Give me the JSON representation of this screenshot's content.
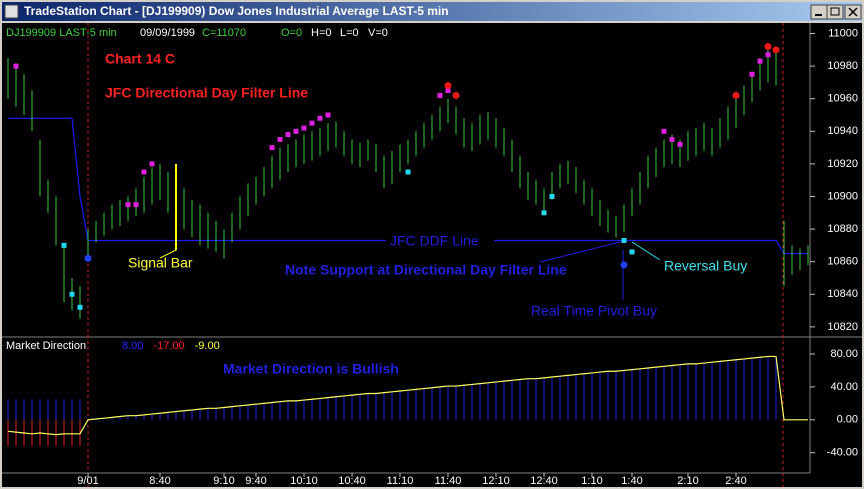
{
  "window": {
    "title": "TradeStation Chart - [DJ199909) Dow Jones Industrial Average LAST-5 min",
    "status": [
      "DJ199909 LAST-5 min",
      "09/09/1999",
      "C=11070",
      "O=0",
      "H=0",
      "L=0",
      "V=0"
    ]
  },
  "chart_data": [
    {
      "type": "range",
      "annotations": [
        "Chart 14 C",
        "JFC Directional Day Filter Line",
        "Signal Bar",
        "JFC DDF Line",
        "Note Support at Directional Day Filter Line",
        "Reversal Buy",
        "Real Time Pivot Buy"
      ],
      "categories": [
        null,
        null,
        null,
        null,
        null,
        null,
        null,
        null,
        null,
        null,
        "9/01",
        null,
        null,
        null,
        null,
        null,
        null,
        null,
        null,
        "8:40",
        null,
        null,
        null,
        null,
        null,
        null,
        null,
        "9:10",
        null,
        null,
        null,
        "9:40",
        null,
        null,
        null,
        null,
        null,
        "10:10",
        null,
        null,
        null,
        null,
        null,
        "10:40",
        null,
        null,
        null,
        null,
        null,
        "11:10",
        null,
        null,
        null,
        null,
        null,
        "11:40",
        null,
        null,
        null,
        null,
        null,
        "12:10",
        null,
        null,
        null,
        null,
        null,
        "12:40",
        null,
        null,
        null,
        null,
        null,
        "1:10",
        null,
        null,
        null,
        null,
        "1:40",
        null,
        null,
        null,
        null,
        null,
        null,
        "2:10",
        null,
        null,
        null,
        null,
        null,
        "2:40",
        null,
        null,
        null,
        null,
        null,
        null,
        null,
        null,
        null
      ],
      "color": "#3cc83c",
      "high": [
        10985,
        10980,
        10975,
        10965,
        10935,
        10910,
        10900,
        10870,
        10850,
        10845,
        10880,
        10885,
        10890,
        10895,
        10898,
        10900,
        10905,
        10912,
        10918,
        10920,
        10915,
        10920,
        10905,
        10898,
        10895,
        10890,
        10885,
        10880,
        10890,
        10900,
        10908,
        10912,
        10918,
        10925,
        10930,
        10932,
        10935,
        10938,
        10940,
        10942,
        10945,
        10946,
        10940,
        10935,
        10933,
        10935,
        10932,
        10925,
        10928,
        10932,
        10935,
        10940,
        10945,
        10950,
        10955,
        10960,
        10955,
        10948,
        10945,
        10950,
        10952,
        10948,
        10942,
        10935,
        10925,
        10915,
        10910,
        10905,
        10915,
        10920,
        10922,
        10918,
        10910,
        10905,
        10898,
        10892,
        10888,
        10895,
        10905,
        10915,
        10925,
        10930,
        10935,
        10938,
        10935,
        10940,
        10942,
        10945,
        10942,
        10948,
        10955,
        10960,
        10968,
        10975,
        10985,
        10990,
        10988,
        10885,
        10870,
        10868,
        10870
      ],
      "low": [
        10960,
        10955,
        10950,
        10940,
        10900,
        10890,
        10870,
        10835,
        10830,
        10825,
        10860,
        10872,
        10876,
        10880,
        10882,
        10885,
        10888,
        10890,
        10895,
        10898,
        10890,
        10867,
        10880,
        10875,
        10870,
        10868,
        10866,
        10862,
        10872,
        10880,
        10888,
        10895,
        10900,
        10905,
        10910,
        10915,
        10918,
        10920,
        10922,
        10925,
        10928,
        10930,
        10925,
        10920,
        10918,
        10922,
        10915,
        10905,
        10908,
        10915,
        10920,
        10925,
        10930,
        10935,
        10940,
        10945,
        10938,
        10930,
        10928,
        10932,
        10935,
        10930,
        10925,
        10915,
        10905,
        10898,
        10895,
        10890,
        10898,
        10905,
        10908,
        10902,
        10895,
        10888,
        10882,
        10878,
        10875,
        10878,
        10888,
        10895,
        10905,
        10912,
        10918,
        10920,
        10918,
        10922,
        10925,
        10928,
        10925,
        10930,
        10935,
        10942,
        10950,
        10958,
        10965,
        10970,
        10968,
        10845,
        10852,
        10855,
        10858
      ],
      "highlight_index": 21,
      "highlight_color": "#ffff00",
      "line": {
        "color": "#1c1cf0",
        "values": [
          10948,
          10948,
          10948,
          10948,
          10948,
          10948,
          10948,
          10948,
          10948,
          10900,
          10873,
          10873,
          10873,
          10873,
          10873,
          10873,
          10873,
          10873,
          10873,
          10873,
          10873,
          10873,
          10873,
          10873,
          10873,
          10873,
          10873,
          10873,
          10873,
          10873,
          10873,
          10873,
          10873,
          10873,
          10873,
          10873,
          10873,
          10873,
          10873,
          10873,
          10873,
          10873,
          10873,
          10873,
          10873,
          10873,
          10873,
          10873,
          10873,
          10873,
          10873,
          10873,
          10873,
          10873,
          10873,
          10873,
          10873,
          10873,
          10873,
          10873,
          10873,
          10873,
          10873,
          10873,
          10873,
          10873,
          10873,
          10873,
          10873,
          10873,
          10873,
          10873,
          10873,
          10873,
          10873,
          10873,
          10873,
          10873,
          10873,
          10873,
          10873,
          10873,
          10873,
          10873,
          10873,
          10873,
          10873,
          10873,
          10873,
          10873,
          10873,
          10873,
          10873,
          10873,
          10873,
          10873,
          10873,
          10865,
          10865,
          10865,
          10865
        ]
      },
      "markers": [
        {
          "color": "#e020e0",
          "shape": "square",
          "points": [
            [
              1,
              10980
            ],
            [
              15,
              10895
            ],
            [
              16,
              10895
            ],
            [
              17,
              10915
            ],
            [
              18,
              10920
            ],
            [
              33,
              10930
            ],
            [
              34,
              10935
            ],
            [
              35,
              10938
            ],
            [
              36,
              10940
            ],
            [
              37,
              10942
            ],
            [
              38,
              10945
            ],
            [
              39,
              10948
            ],
            [
              40,
              10950
            ],
            [
              54,
              10962
            ],
            [
              55,
              10965
            ],
            [
              82,
              10940
            ],
            [
              83,
              10935
            ],
            [
              84,
              10932
            ],
            [
              93,
              10975
            ],
            [
              94,
              10983
            ],
            [
              95,
              10987
            ]
          ]
        },
        {
          "color": "#20d8f0",
          "shape": "square",
          "points": [
            [
              7,
              10870
            ],
            [
              8,
              10840
            ],
            [
              9,
              10832
            ],
            [
              50,
              10915
            ],
            [
              67,
              10890
            ],
            [
              68,
              10900
            ],
            [
              77,
              10873
            ],
            [
              78,
              10866
            ]
          ]
        },
        {
          "color": "#f01818",
          "shape": "circle",
          "points": [
            [
              55,
              10968
            ],
            [
              56,
              10962
            ],
            [
              91,
              10962
            ],
            [
              95,
              10992
            ],
            [
              96,
              10990
            ]
          ]
        },
        {
          "color": "#2040ff",
          "shape": "circle",
          "points": [
            [
              10,
              10862
            ],
            [
              77,
              10858
            ]
          ]
        }
      ],
      "ylim": [
        10815,
        11004
      ],
      "yticks": [
        10820,
        10840,
        10860,
        10880,
        10900,
        10920,
        10940,
        10960,
        10980,
        11000
      ]
    },
    {
      "type": "line",
      "title": "Market Direction",
      "readouts": [
        {
          "text": "8.00",
          "color": "#2828ff"
        },
        {
          "text": "-17.00",
          "color": "#ff2020"
        },
        {
          "text": "-9.00",
          "color": "#ffff40"
        }
      ],
      "annotations": [
        "Market Direction is Bullish"
      ],
      "series": [
        {
          "kind": "bar",
          "color": "#2020e8",
          "values": [
            25,
            25,
            25,
            25,
            25,
            25,
            25,
            25,
            25,
            25,
            0,
            1,
            2,
            3,
            4,
            5,
            5,
            6,
            7,
            8,
            9,
            10,
            11,
            12,
            13,
            14,
            14,
            15,
            16,
            17,
            18,
            19,
            20,
            21,
            22,
            23,
            23,
            24,
            25,
            26,
            27,
            28,
            29,
            30,
            31,
            32,
            32,
            33,
            34,
            35,
            36,
            37,
            38,
            39,
            40,
            41,
            41,
            42,
            43,
            44,
            45,
            46,
            47,
            48,
            49,
            50,
            50,
            51,
            52,
            53,
            54,
            55,
            56,
            57,
            58,
            59,
            59,
            60,
            61,
            62,
            63,
            64,
            65,
            66,
            67,
            68,
            68,
            69,
            70,
            71,
            72,
            73,
            74,
            75,
            76,
            77,
            77,
            null,
            null,
            null,
            null
          ]
        },
        {
          "kind": "bar",
          "color": "#e02020",
          "values": [
            -32,
            -32,
            -32,
            -32,
            -32,
            -32,
            -32,
            -32,
            -32,
            -32,
            null,
            null,
            null,
            null,
            null,
            null,
            null,
            null,
            null,
            null,
            null,
            null,
            null,
            null,
            null,
            null,
            null,
            null,
            null,
            null,
            null,
            null,
            null,
            null,
            null,
            null,
            null,
            null,
            null,
            null,
            null,
            null,
            null,
            null,
            null,
            null,
            null,
            null,
            null,
            null,
            null,
            null,
            null,
            null,
            null,
            null,
            null,
            null,
            null,
            null,
            null,
            null,
            null,
            null,
            null,
            null,
            null,
            null,
            null,
            null,
            null,
            null,
            null,
            null,
            null,
            null,
            null,
            null,
            null,
            null,
            null,
            null,
            null,
            null,
            null,
            null,
            null,
            null,
            null,
            null,
            null,
            null,
            null,
            null,
            null,
            null,
            null,
            null,
            null,
            null,
            null
          ]
        },
        {
          "kind": "line",
          "color": "#ffff60",
          "values": [
            -14,
            -15,
            -16,
            -17,
            -16,
            -17,
            -18,
            -17,
            -17,
            -17,
            0,
            1,
            2,
            3,
            4,
            5,
            5,
            6,
            7,
            8,
            9,
            10,
            11,
            12,
            13,
            14,
            14,
            15,
            16,
            17,
            18,
            19,
            20,
            21,
            22,
            23,
            23,
            24,
            25,
            26,
            27,
            28,
            29,
            30,
            31,
            32,
            32,
            33,
            34,
            35,
            36,
            37,
            38,
            39,
            40,
            41,
            41,
            42,
            43,
            44,
            45,
            46,
            47,
            48,
            49,
            50,
            50,
            51,
            52,
            53,
            54,
            55,
            56,
            57,
            58,
            59,
            59,
            60,
            61,
            62,
            63,
            64,
            65,
            66,
            67,
            68,
            68,
            69,
            70,
            71,
            72,
            73,
            74,
            75,
            76,
            77,
            77,
            0,
            0,
            0,
            0
          ]
        }
      ],
      "ylim": [
        -61,
        97
      ],
      "yticks": [
        {
          "value": 80,
          "label": "80.00"
        },
        {
          "value": 40,
          "label": "40.00"
        },
        {
          "value": 0,
          "label": "0.00"
        },
        {
          "value": -40,
          "label": "-40.00"
        }
      ]
    }
  ]
}
